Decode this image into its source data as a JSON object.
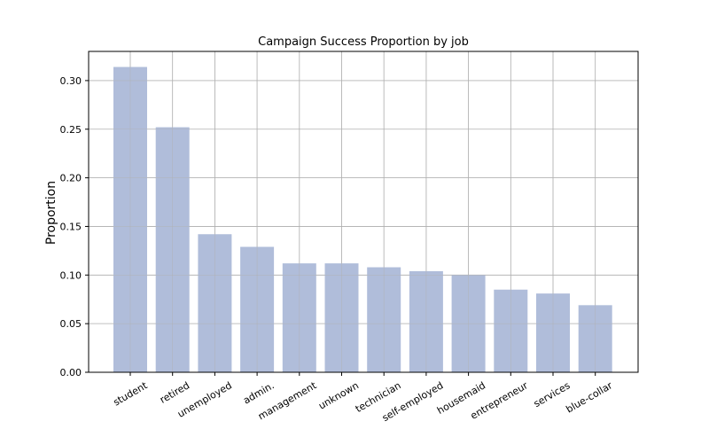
{
  "chart_data": {
    "type": "bar",
    "title": "Campaign Success Proportion by job",
    "xlabel": "",
    "ylabel": "Proportion",
    "categories": [
      "student",
      "retired",
      "unemployed",
      "admin.",
      "management",
      "unknown",
      "technician",
      "self-employed",
      "housemaid",
      "entrepreneur",
      "services",
      "blue-collar"
    ],
    "values": [
      0.314,
      0.252,
      0.142,
      0.129,
      0.112,
      0.112,
      0.108,
      0.104,
      0.1,
      0.085,
      0.081,
      0.069
    ],
    "ylim": [
      0,
      0.33
    ],
    "yticks": [
      "0.00",
      "0.05",
      "0.10",
      "0.15",
      "0.20",
      "0.25",
      "0.30"
    ],
    "grid": true,
    "bar_color": "#b0bdda",
    "grid_color": "#b0b0b0"
  }
}
